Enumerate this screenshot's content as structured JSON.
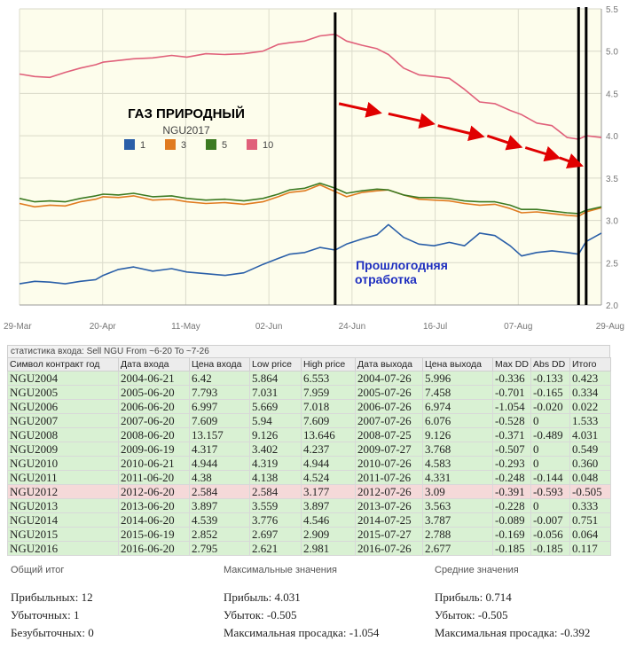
{
  "chart_data": {
    "type": "line",
    "title": "ГАЗ ПРИРОДНЫЙ",
    "subtitle": "NGU2017",
    "annotation": "Прошлогодняя отработка",
    "x_tick_labels": [
      "29-Mar",
      "20-Apr",
      "11-May",
      "02-Jun",
      "24-Jun",
      "16-Jul",
      "07-Aug",
      "29-Aug"
    ],
    "y_tick_labels": [
      "2.0",
      "2.5",
      "3.0",
      "3.5",
      "4.0",
      "4.5",
      "5.0",
      "5.5"
    ],
    "ylim": [
      2.0,
      5.5
    ],
    "x_range": [
      "2017-03-29",
      "2017-08-29"
    ],
    "grid": true,
    "legend": [
      "1",
      "3",
      "5",
      "10"
    ],
    "colors": {
      "1": "#2a5fa8",
      "3": "#e07b20",
      "5": "#3c7a22",
      "10": "#e0607a",
      "arrow": "#e00000",
      "annotation": "#2030c0"
    },
    "vertical_markers": [
      "2017-06-20",
      "2017-08-23",
      "2017-08-25"
    ],
    "series": [
      {
        "name": "1",
        "points": [
          [
            "2017-03-29",
            2.25
          ],
          [
            "2017-04-02",
            2.28
          ],
          [
            "2017-04-06",
            2.27
          ],
          [
            "2017-04-10",
            2.25
          ],
          [
            "2017-04-14",
            2.28
          ],
          [
            "2017-04-18",
            2.3
          ],
          [
            "2017-04-20",
            2.35
          ],
          [
            "2017-04-24",
            2.42
          ],
          [
            "2017-04-28",
            2.45
          ],
          [
            "2017-05-03",
            2.4
          ],
          [
            "2017-05-08",
            2.43
          ],
          [
            "2017-05-12",
            2.39
          ],
          [
            "2017-05-17",
            2.37
          ],
          [
            "2017-05-22",
            2.35
          ],
          [
            "2017-05-27",
            2.38
          ],
          [
            "2017-06-01",
            2.48
          ],
          [
            "2017-06-05",
            2.55
          ],
          [
            "2017-06-08",
            2.6
          ],
          [
            "2017-06-12",
            2.62
          ],
          [
            "2017-06-16",
            2.68
          ],
          [
            "2017-06-20",
            2.65
          ],
          [
            "2017-06-23",
            2.72
          ],
          [
            "2017-06-27",
            2.78
          ],
          [
            "2017-07-01",
            2.83
          ],
          [
            "2017-07-04",
            2.95
          ],
          [
            "2017-07-08",
            2.8
          ],
          [
            "2017-07-12",
            2.72
          ],
          [
            "2017-07-16",
            2.7
          ],
          [
            "2017-07-20",
            2.74
          ],
          [
            "2017-07-24",
            2.7
          ],
          [
            "2017-07-28",
            2.85
          ],
          [
            "2017-08-01",
            2.82
          ],
          [
            "2017-08-05",
            2.7
          ],
          [
            "2017-08-08",
            2.58
          ],
          [
            "2017-08-12",
            2.62
          ],
          [
            "2017-08-16",
            2.64
          ],
          [
            "2017-08-20",
            2.62
          ],
          [
            "2017-08-23",
            2.6
          ],
          [
            "2017-08-25",
            2.75
          ],
          [
            "2017-08-29",
            2.85
          ]
        ]
      },
      {
        "name": "3",
        "points": [
          [
            "2017-03-29",
            3.2
          ],
          [
            "2017-04-02",
            3.16
          ],
          [
            "2017-04-06",
            3.18
          ],
          [
            "2017-04-10",
            3.17
          ],
          [
            "2017-04-14",
            3.22
          ],
          [
            "2017-04-18",
            3.25
          ],
          [
            "2017-04-20",
            3.28
          ],
          [
            "2017-04-24",
            3.27
          ],
          [
            "2017-04-28",
            3.29
          ],
          [
            "2017-05-03",
            3.24
          ],
          [
            "2017-05-08",
            3.25
          ],
          [
            "2017-05-12",
            3.22
          ],
          [
            "2017-05-17",
            3.2
          ],
          [
            "2017-05-22",
            3.21
          ],
          [
            "2017-05-27",
            3.19
          ],
          [
            "2017-06-01",
            3.22
          ],
          [
            "2017-06-05",
            3.28
          ],
          [
            "2017-06-08",
            3.33
          ],
          [
            "2017-06-12",
            3.35
          ],
          [
            "2017-06-16",
            3.42
          ],
          [
            "2017-06-20",
            3.34
          ],
          [
            "2017-06-23",
            3.28
          ],
          [
            "2017-06-27",
            3.33
          ],
          [
            "2017-07-01",
            3.35
          ],
          [
            "2017-07-04",
            3.36
          ],
          [
            "2017-07-08",
            3.3
          ],
          [
            "2017-07-12",
            3.25
          ],
          [
            "2017-07-16",
            3.24
          ],
          [
            "2017-07-20",
            3.23
          ],
          [
            "2017-07-24",
            3.2
          ],
          [
            "2017-07-28",
            3.18
          ],
          [
            "2017-08-01",
            3.19
          ],
          [
            "2017-08-05",
            3.14
          ],
          [
            "2017-08-08",
            3.09
          ],
          [
            "2017-08-12",
            3.1
          ],
          [
            "2017-08-16",
            3.08
          ],
          [
            "2017-08-20",
            3.06
          ],
          [
            "2017-08-23",
            3.05
          ],
          [
            "2017-08-25",
            3.1
          ],
          [
            "2017-08-29",
            3.15
          ]
        ]
      },
      {
        "name": "5",
        "points": [
          [
            "2017-03-29",
            3.26
          ],
          [
            "2017-04-02",
            3.22
          ],
          [
            "2017-04-06",
            3.23
          ],
          [
            "2017-04-10",
            3.22
          ],
          [
            "2017-04-14",
            3.26
          ],
          [
            "2017-04-18",
            3.29
          ],
          [
            "2017-04-20",
            3.31
          ],
          [
            "2017-04-24",
            3.3
          ],
          [
            "2017-04-28",
            3.32
          ],
          [
            "2017-05-03",
            3.28
          ],
          [
            "2017-05-08",
            3.29
          ],
          [
            "2017-05-12",
            3.26
          ],
          [
            "2017-05-17",
            3.24
          ],
          [
            "2017-05-22",
            3.25
          ],
          [
            "2017-05-27",
            3.23
          ],
          [
            "2017-06-01",
            3.26
          ],
          [
            "2017-06-05",
            3.31
          ],
          [
            "2017-06-08",
            3.36
          ],
          [
            "2017-06-12",
            3.38
          ],
          [
            "2017-06-16",
            3.44
          ],
          [
            "2017-06-20",
            3.38
          ],
          [
            "2017-06-23",
            3.32
          ],
          [
            "2017-06-27",
            3.35
          ],
          [
            "2017-07-01",
            3.37
          ],
          [
            "2017-07-04",
            3.36
          ],
          [
            "2017-07-08",
            3.3
          ],
          [
            "2017-07-12",
            3.27
          ],
          [
            "2017-07-16",
            3.27
          ],
          [
            "2017-07-20",
            3.26
          ],
          [
            "2017-07-24",
            3.23
          ],
          [
            "2017-07-28",
            3.22
          ],
          [
            "2017-08-01",
            3.22
          ],
          [
            "2017-08-05",
            3.18
          ],
          [
            "2017-08-08",
            3.13
          ],
          [
            "2017-08-12",
            3.13
          ],
          [
            "2017-08-16",
            3.11
          ],
          [
            "2017-08-20",
            3.09
          ],
          [
            "2017-08-23",
            3.08
          ],
          [
            "2017-08-25",
            3.12
          ],
          [
            "2017-08-29",
            3.16
          ]
        ]
      },
      {
        "name": "10",
        "points": [
          [
            "2017-03-29",
            4.73
          ],
          [
            "2017-04-02",
            4.7
          ],
          [
            "2017-04-06",
            4.69
          ],
          [
            "2017-04-10",
            4.75
          ],
          [
            "2017-04-14",
            4.8
          ],
          [
            "2017-04-18",
            4.84
          ],
          [
            "2017-04-20",
            4.87
          ],
          [
            "2017-04-24",
            4.89
          ],
          [
            "2017-04-28",
            4.91
          ],
          [
            "2017-05-03",
            4.92
          ],
          [
            "2017-05-08",
            4.95
          ],
          [
            "2017-05-12",
            4.93
          ],
          [
            "2017-05-17",
            4.97
          ],
          [
            "2017-05-22",
            4.96
          ],
          [
            "2017-05-27",
            4.97
          ],
          [
            "2017-06-01",
            5.0
          ],
          [
            "2017-06-05",
            5.08
          ],
          [
            "2017-06-08",
            5.1
          ],
          [
            "2017-06-12",
            5.12
          ],
          [
            "2017-06-16",
            5.18
          ],
          [
            "2017-06-20",
            5.2
          ],
          [
            "2017-06-23",
            5.12
          ],
          [
            "2017-06-27",
            5.07
          ],
          [
            "2017-07-01",
            5.03
          ],
          [
            "2017-07-04",
            4.96
          ],
          [
            "2017-07-08",
            4.8
          ],
          [
            "2017-07-12",
            4.72
          ],
          [
            "2017-07-16",
            4.7
          ],
          [
            "2017-07-20",
            4.68
          ],
          [
            "2017-07-24",
            4.55
          ],
          [
            "2017-07-28",
            4.4
          ],
          [
            "2017-08-01",
            4.38
          ],
          [
            "2017-08-05",
            4.3
          ],
          [
            "2017-08-08",
            4.25
          ],
          [
            "2017-08-12",
            4.15
          ],
          [
            "2017-08-16",
            4.12
          ],
          [
            "2017-08-20",
            3.98
          ],
          [
            "2017-08-23",
            3.96
          ],
          [
            "2017-08-25",
            4.0
          ],
          [
            "2017-08-29",
            3.98
          ]
        ]
      }
    ],
    "arrows": [
      [
        [
          "2017-06-21",
          4.38
        ],
        [
          "2017-07-01",
          4.28
        ]
      ],
      [
        [
          "2017-07-04",
          4.26
        ],
        [
          "2017-07-15",
          4.15
        ]
      ],
      [
        [
          "2017-07-17",
          4.12
        ],
        [
          "2017-07-28",
          4.0
        ]
      ],
      [
        [
          "2017-07-30",
          4.0
        ],
        [
          "2017-08-07",
          3.88
        ]
      ],
      [
        [
          "2017-08-09",
          3.86
        ],
        [
          "2017-08-17",
          3.75
        ]
      ],
      [
        [
          "2017-08-18",
          3.74
        ],
        [
          "2017-08-23",
          3.66
        ]
      ]
    ]
  },
  "stats": {
    "caption": "статистика входа: Sell NGU From ~6-20 To ~7-26",
    "headers": [
      "Символ контракт год",
      "Дата входа",
      "Цена входа",
      "Low price",
      "High price",
      "Дата выхода",
      "Цена выхода",
      "Max DD",
      "Abs DD",
      "Итого"
    ],
    "rows": [
      {
        "cells": [
          "NGU2004",
          "2004-06-21",
          "6.42",
          "5.864",
          "6.553",
          "2004-07-26",
          "5.996",
          "-0.336",
          "-0.133",
          "0.423"
        ],
        "status": "good"
      },
      {
        "cells": [
          "NGU2005",
          "2005-06-20",
          "7.793",
          "7.031",
          "7.959",
          "2005-07-26",
          "7.458",
          "-0.701",
          "-0.165",
          "0.334"
        ],
        "status": "good"
      },
      {
        "cells": [
          "NGU2006",
          "2006-06-20",
          "6.997",
          "5.669",
          "7.018",
          "2006-07-26",
          "6.974",
          "-1.054",
          "-0.020",
          "0.022"
        ],
        "status": "good"
      },
      {
        "cells": [
          "NGU2007",
          "2007-06-20",
          "7.609",
          "5.94",
          "7.609",
          "2007-07-26",
          "6.076",
          "-0.528",
          "0",
          "1.533"
        ],
        "status": "good"
      },
      {
        "cells": [
          "NGU2008",
          "2008-06-20",
          "13.157",
          "9.126",
          "13.646",
          "2008-07-25",
          "9.126",
          "-0.371",
          "-0.489",
          "4.031"
        ],
        "status": "good"
      },
      {
        "cells": [
          "NGU2009",
          "2009-06-19",
          "4.317",
          "3.402",
          "4.237",
          "2009-07-27",
          "3.768",
          "-0.507",
          "0",
          "0.549"
        ],
        "status": "good"
      },
      {
        "cells": [
          "NGU2010",
          "2010-06-21",
          "4.944",
          "4.319",
          "4.944",
          "2010-07-26",
          "4.583",
          "-0.293",
          "0",
          "0.360"
        ],
        "status": "good"
      },
      {
        "cells": [
          "NGU2011",
          "2011-06-20",
          "4.38",
          "4.138",
          "4.524",
          "2011-07-26",
          "4.331",
          "-0.248",
          "-0.144",
          "0.048"
        ],
        "status": "good"
      },
      {
        "cells": [
          "NGU2012",
          "2012-06-20",
          "2.584",
          "2.584",
          "3.177",
          "2012-07-26",
          "3.09",
          "-0.391",
          "-0.593",
          "-0.505"
        ],
        "status": "bad"
      },
      {
        "cells": [
          "NGU2013",
          "2013-06-20",
          "3.897",
          "3.559",
          "3.897",
          "2013-07-26",
          "3.563",
          "-0.228",
          "0",
          "0.333"
        ],
        "status": "good"
      },
      {
        "cells": [
          "NGU2014",
          "2014-06-20",
          "4.539",
          "3.776",
          "4.546",
          "2014-07-25",
          "3.787",
          "-0.089",
          "-0.007",
          "0.751"
        ],
        "status": "good"
      },
      {
        "cells": [
          "NGU2015",
          "2015-06-19",
          "2.852",
          "2.697",
          "2.909",
          "2015-07-27",
          "2.788",
          "-0.169",
          "-0.056",
          "0.064"
        ],
        "status": "good"
      },
      {
        "cells": [
          "NGU2016",
          "2016-06-20",
          "2.795",
          "2.621",
          "2.981",
          "2016-07-26",
          "2.677",
          "-0.185",
          "-0.185",
          "0.117"
        ],
        "status": "good"
      }
    ]
  },
  "summary": {
    "total": {
      "title": "Общий итог",
      "lines": [
        "Прибыльных: 12",
        "Убыточных: 1",
        "Безубыточных: 0"
      ]
    },
    "max": {
      "title": "Максимальные значения",
      "lines": [
        "Прибыль: 4.031",
        "Убыток: -0.505",
        "Максимальная просадка: -1.054"
      ]
    },
    "avg": {
      "title": "Средние значения",
      "lines": [
        "Прибыль: 0.714",
        "Убыток: -0.505",
        "Максимальная просадка: -0.392"
      ]
    }
  }
}
